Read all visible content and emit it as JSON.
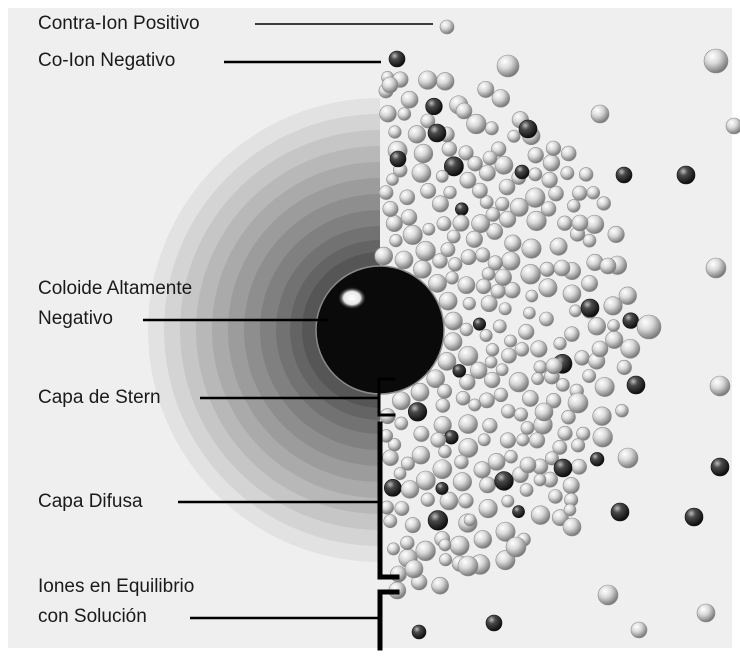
{
  "labels": {
    "positive_counter_ion": "Contra-Ion Positivo",
    "negative_co_ion": "Co-Ion Negativo",
    "colloid_line1": "Coloide Altamente",
    "colloid_line2": "Negativo",
    "stern_layer": "Capa de Stern",
    "diffuse_layer": "Capa Difusa",
    "equilibrium_line1": "Iones en Equilibrio",
    "equilibrium_line2": "con Solución"
  },
  "colors": {
    "background_panel": "#efefef",
    "colloid": "#0a0a0a",
    "positive_ion": "#d8d8d8",
    "negative_ion": "#3a3a3a",
    "leader_line": "#000000"
  },
  "legend_icons": {
    "positive": "light-sphere-icon",
    "negative": "dark-sphere-icon"
  }
}
